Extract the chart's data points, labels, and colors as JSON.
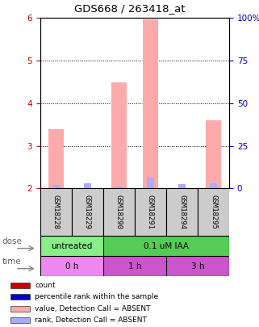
{
  "title": "GDS668 / 263418_at",
  "samples": [
    "GSM18228",
    "GSM18229",
    "GSM18290",
    "GSM18291",
    "GSM18294",
    "GSM18295"
  ],
  "pink_bar_values": [
    3.38,
    2.0,
    4.48,
    5.97,
    2.0,
    3.6
  ],
  "blue_bar_values": [
    2.08,
    2.12,
    2.05,
    2.25,
    2.1,
    2.12
  ],
  "left_ylim": [
    2,
    6
  ],
  "left_yticks": [
    2,
    3,
    4,
    5,
    6
  ],
  "right_yticks": [
    0,
    25,
    50,
    75,
    100
  ],
  "right_ylim": [
    0,
    100
  ],
  "left_ycolor": "#cc0000",
  "right_ycolor": "#0000cc",
  "bar_pink_color": "#ffaaaa",
  "bar_blue_color": "#aaaaff",
  "dose_labels": [
    {
      "text": "untreated",
      "start": 0,
      "end": 2,
      "color": "#88ee88"
    },
    {
      "text": "0.1 uM IAA",
      "start": 2,
      "end": 6,
      "color": "#55cc55"
    }
  ],
  "time_labels": [
    {
      "text": "0 h",
      "start": 0,
      "end": 2,
      "color": "#ee88ee"
    },
    {
      "text": "1 h",
      "start": 2,
      "end": 4,
      "color": "#cc55cc"
    },
    {
      "text": "3 h",
      "start": 4,
      "end": 6,
      "color": "#cc55cc"
    }
  ],
  "legend_items": [
    {
      "color": "#cc0000",
      "label": "count"
    },
    {
      "color": "#0000cc",
      "label": "percentile rank within the sample"
    },
    {
      "color": "#ffaaaa",
      "label": "value, Detection Call = ABSENT"
    },
    {
      "color": "#aaaaff",
      "label": "rank, Detection Call = ABSENT"
    }
  ],
  "dose_row_label": "dose",
  "time_row_label": "time",
  "sample_box_color": "#cccccc",
  "bar_width": 0.5
}
